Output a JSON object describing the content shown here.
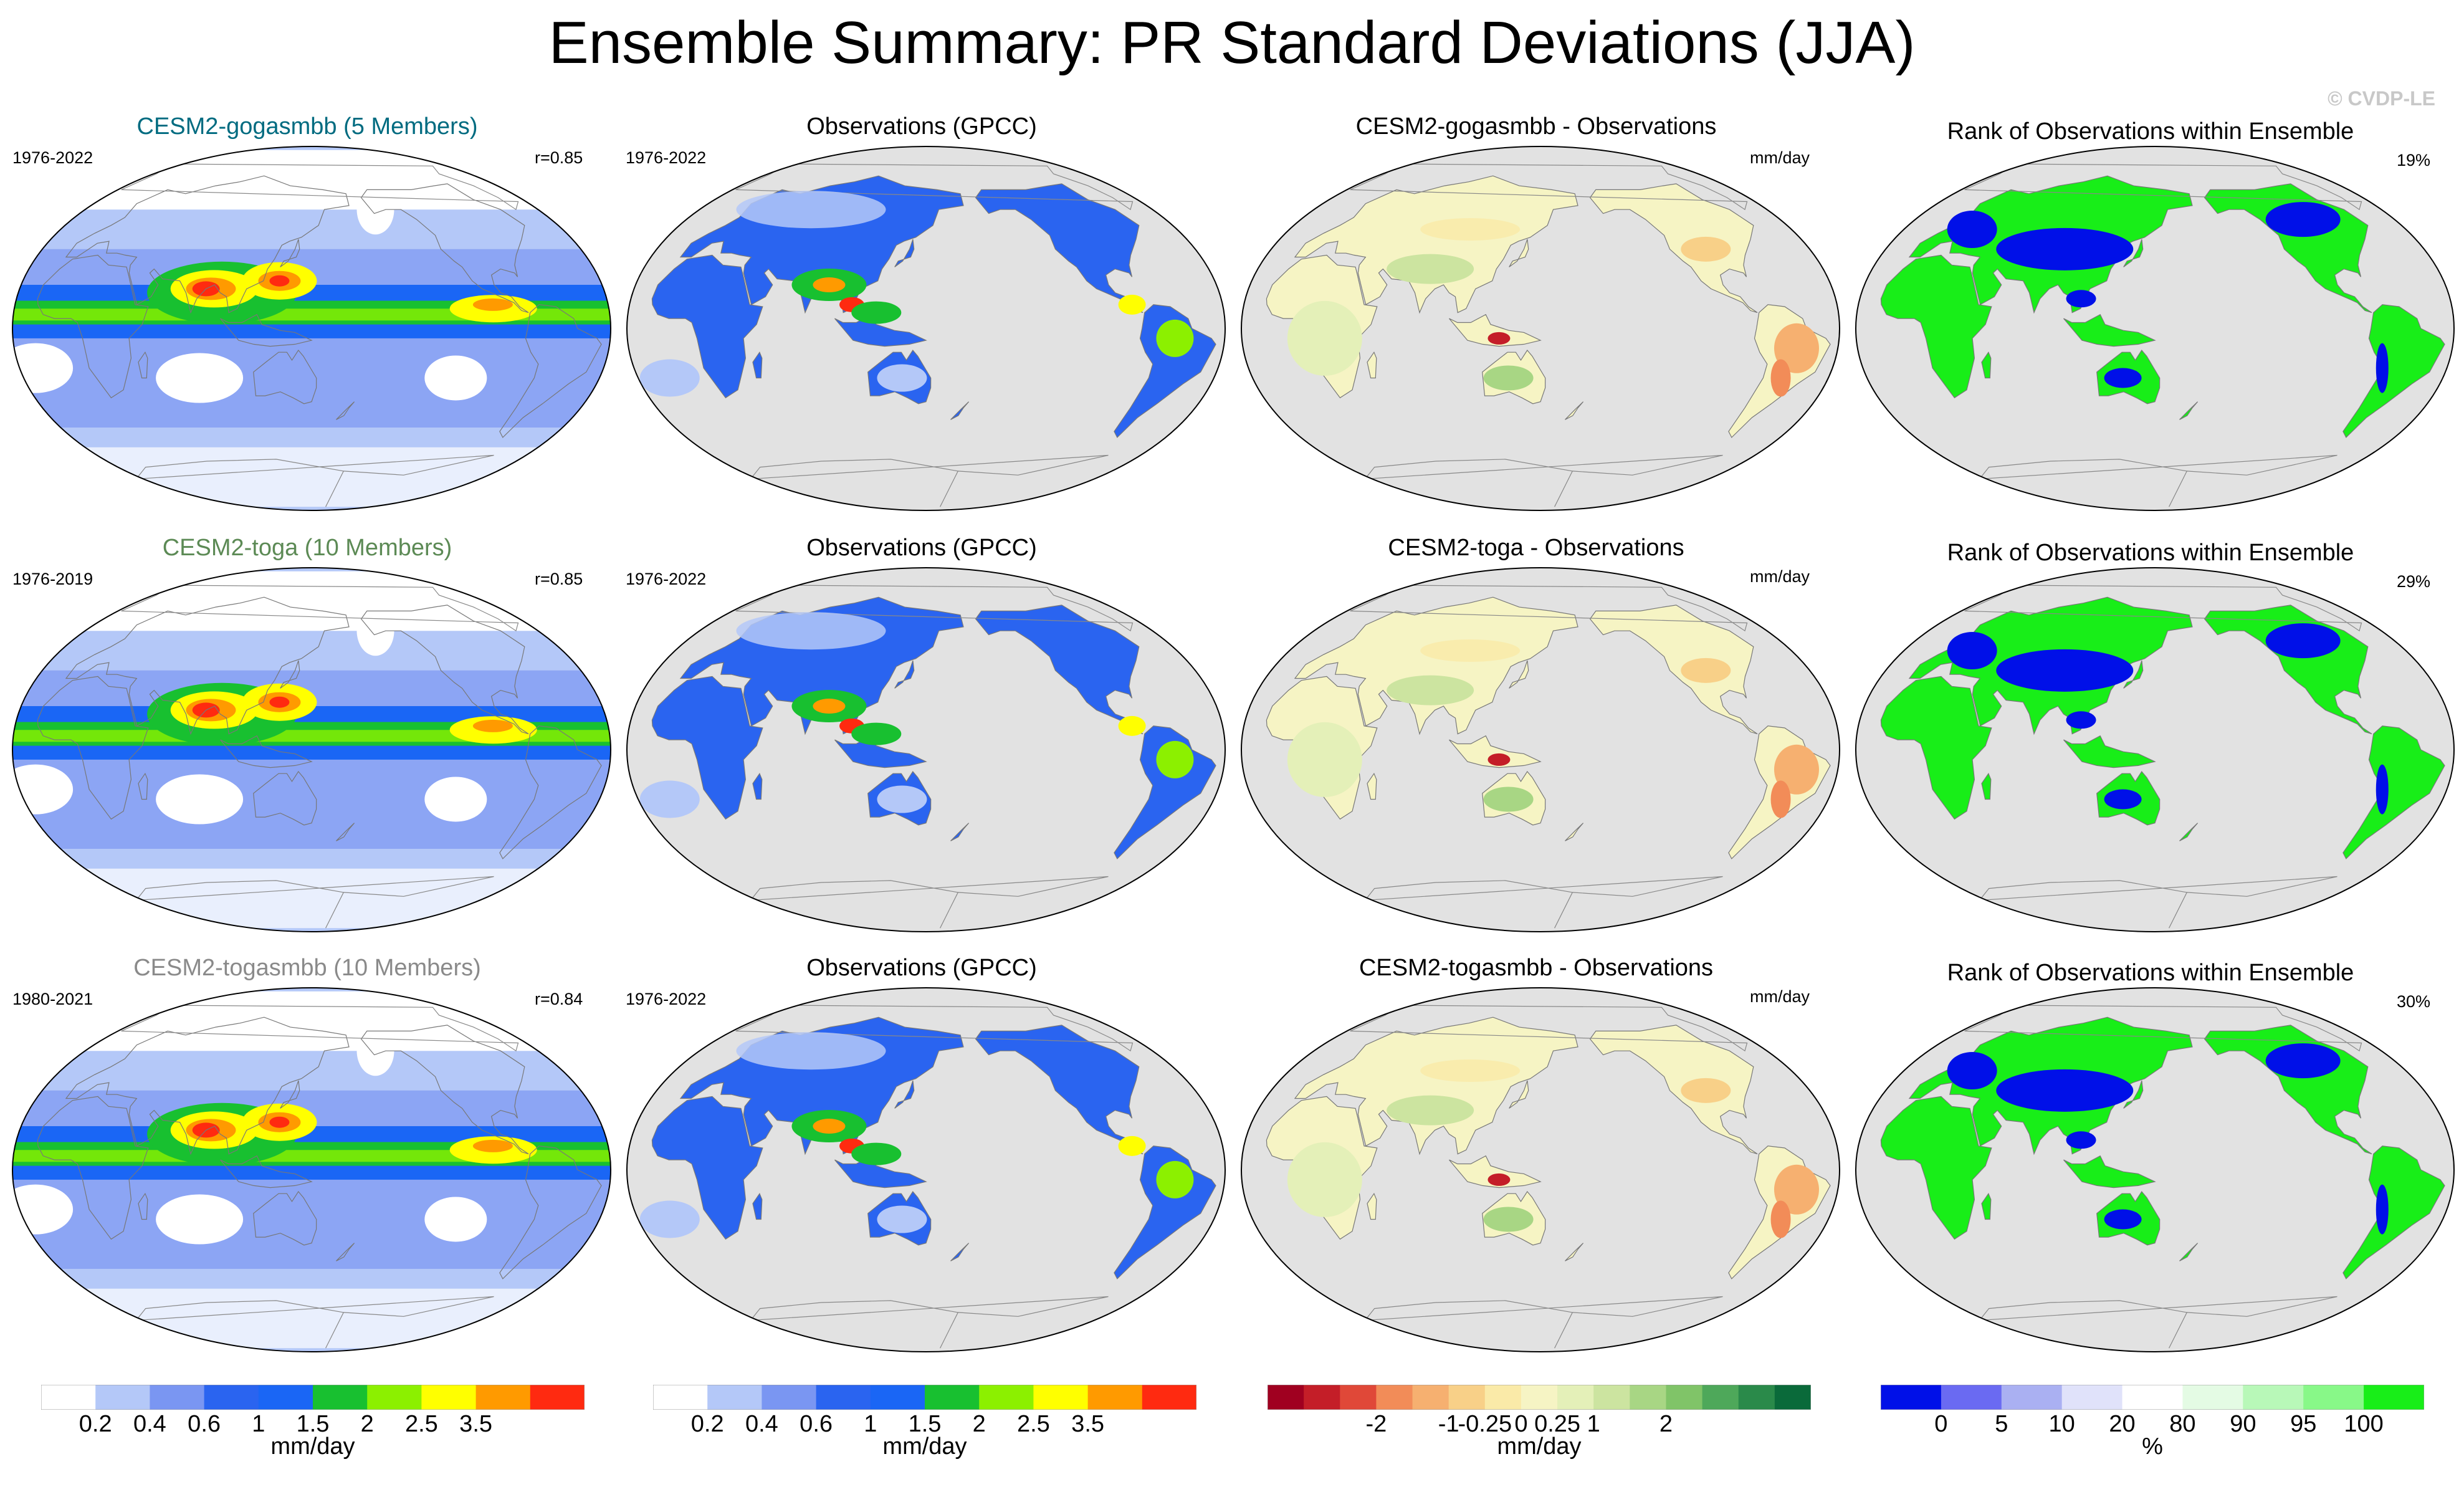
{
  "title": "Ensemble Summary: PR Standard Deviations (JJA)",
  "watermark": "© CVDP-LE",
  "colors": {
    "ocean_bg": "#e2e2e2",
    "stdev_scale": [
      "#ffffff",
      "#b4c8f8",
      "#7a96f2",
      "#2a64f0",
      "#1a66f5",
      "#18c030",
      "#8cf000",
      "#ffff00",
      "#ff9a00",
      "#ff2a10"
    ],
    "diff_scale": [
      "#a00020",
      "#c41e28",
      "#e04838",
      "#f28c58",
      "#f6b070",
      "#f8d088",
      "#faeaa8",
      "#f6f4c4",
      "#e4f0b8",
      "#cce4a0",
      "#a8d684",
      "#80c468",
      "#4ea85a",
      "#2a8a4a",
      "#0a6a3a"
    ],
    "rank_scale": [
      "#0010e8",
      "#6a6af2",
      "#aab0f2",
      "#e0e2fa",
      "#ffffff",
      "#e4fbe4",
      "#b8f8b8",
      "#88f888",
      "#18ee18"
    ]
  },
  "rows": [
    {
      "model": {
        "title": "CESM2-gogasmbb (5 Members)",
        "title_color": "#006b80",
        "years": "1976-2022",
        "r": "r=0.85"
      },
      "obs": {
        "title": "Observations (GPCC)",
        "years": "1976-2022"
      },
      "diff": {
        "title": "CESM2-gogasmbb - Observations",
        "units": "mm/day"
      },
      "rank": {
        "title": "Rank of Observations within Ensemble",
        "pct": "19%"
      }
    },
    {
      "model": {
        "title": "CESM2-toga (10 Members)",
        "title_color": "#5c8a55",
        "years": "1976-2019",
        "r": "r=0.85"
      },
      "obs": {
        "title": "Observations (GPCC)",
        "years": "1976-2022"
      },
      "diff": {
        "title": "CESM2-toga - Observations",
        "units": "mm/day"
      },
      "rank": {
        "title": "Rank of Observations within Ensemble",
        "pct": "29%"
      }
    },
    {
      "model": {
        "title": "CESM2-togasmbb (10 Members)",
        "title_color": "#8a8a8a",
        "years": "1980-2021",
        "r": "r=0.84"
      },
      "obs": {
        "title": "Observations (GPCC)",
        "years": "1976-2022"
      },
      "diff": {
        "title": "CESM2-togasmbb - Observations",
        "units": "mm/day"
      },
      "rank": {
        "title": "Rank of Observations within Ensemble",
        "pct": "30%"
      }
    }
  ],
  "colorbars": [
    {
      "label": "mm/day",
      "ticks": [
        "0.2",
        "0.4",
        "0.6",
        "1",
        "1.5",
        "2",
        "2.5",
        "3.5"
      ]
    },
    {
      "label": "mm/day",
      "ticks": [
        "0.2",
        "0.4",
        "0.6",
        "1",
        "1.5",
        "2",
        "2.5",
        "3.5"
      ]
    },
    {
      "label": "mm/day",
      "ticks": [
        "-2",
        "-1",
        "-0.25",
        "0",
        "0.25",
        "1",
        "2"
      ]
    },
    {
      "label": "%",
      "ticks": [
        "0",
        "5",
        "10",
        "20",
        "80",
        "90",
        "95",
        "100"
      ]
    }
  ]
}
